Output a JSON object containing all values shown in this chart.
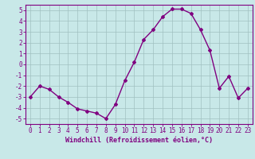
{
  "x": [
    0,
    1,
    2,
    3,
    4,
    5,
    6,
    7,
    8,
    9,
    10,
    11,
    12,
    13,
    14,
    15,
    16,
    17,
    18,
    19,
    20,
    21,
    22,
    23
  ],
  "y": [
    -3.0,
    -2.0,
    -2.3,
    -3.0,
    -3.5,
    -4.1,
    -4.3,
    -4.5,
    -5.0,
    -3.7,
    -1.5,
    0.2,
    2.3,
    3.2,
    4.4,
    5.1,
    5.1,
    4.7,
    3.2,
    1.3,
    -2.2,
    -1.1,
    -3.1,
    -2.2
  ],
  "ylim": [
    -5.5,
    5.5
  ],
  "yticks": [
    -5,
    -4,
    -3,
    -2,
    -1,
    0,
    1,
    2,
    3,
    4,
    5
  ],
  "xlim": [
    -0.5,
    23.5
  ],
  "line_color": "#800080",
  "marker": "D",
  "marker_size": 2.0,
  "bg_color": "#c8e8e8",
  "grid_color": "#a0c0c0",
  "xlabel": "Windchill (Refroidissement éolien,°C)",
  "xlabel_fontsize": 6.0,
  "tick_fontsize": 5.5,
  "spine_color": "#800080",
  "line_width": 1.0
}
